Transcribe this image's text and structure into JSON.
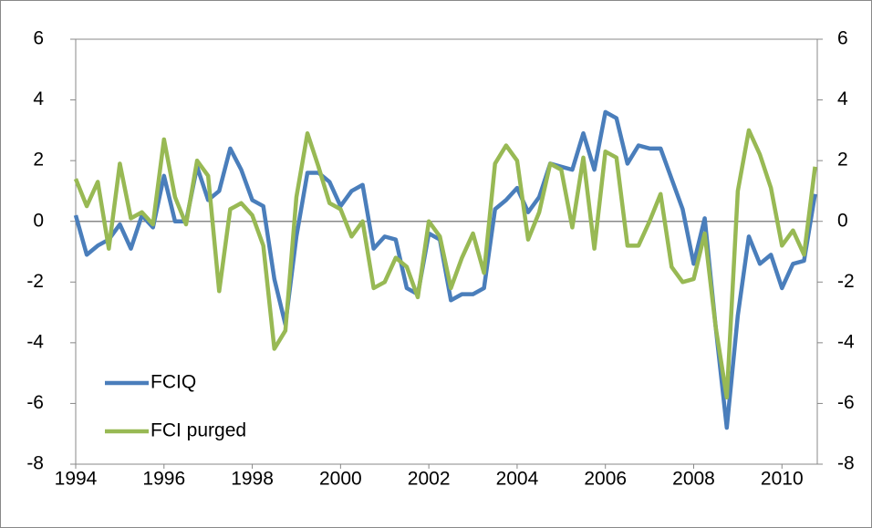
{
  "chart_data": {
    "type": "line",
    "x": [
      1994,
      1994.25,
      1994.5,
      1994.75,
      1995,
      1995.25,
      1995.5,
      1995.75,
      1996,
      1996.25,
      1996.5,
      1996.75,
      1997,
      1997.25,
      1997.5,
      1997.75,
      1998,
      1998.25,
      1998.5,
      1998.75,
      1999,
      1999.25,
      1999.5,
      1999.75,
      2000,
      2000.25,
      2000.5,
      2000.75,
      2001,
      2001.25,
      2001.5,
      2001.75,
      2002,
      2002.25,
      2002.5,
      2002.75,
      2003,
      2003.25,
      2003.5,
      2003.75,
      2004,
      2004.25,
      2004.5,
      2004.75,
      2005,
      2005.25,
      2005.5,
      2005.75,
      2006,
      2006.25,
      2006.5,
      2006.75,
      2007,
      2007.25,
      2007.5,
      2007.75,
      2008,
      2008.25,
      2008.5,
      2008.75,
      2009,
      2009.25,
      2009.5,
      2009.75,
      2010,
      2010.25,
      2010.5,
      2010.75
    ],
    "series": [
      {
        "name": "FCIQ",
        "color": "#4a7ebb",
        "values": [
          0.2,
          -1.1,
          -0.8,
          -0.6,
          -0.1,
          -0.9,
          0.2,
          -0.2,
          1.5,
          0.0,
          0.0,
          1.8,
          0.7,
          1.0,
          2.4,
          1.7,
          0.7,
          0.5,
          -1.9,
          -3.4,
          -0.5,
          1.6,
          1.6,
          1.3,
          0.5,
          1.0,
          1.2,
          -0.9,
          -0.5,
          -0.6,
          -2.2,
          -2.4,
          -0.4,
          -0.6,
          -2.6,
          -2.4,
          -2.4,
          -2.2,
          0.4,
          0.7,
          1.1,
          0.3,
          0.8,
          1.9,
          1.8,
          1.7,
          2.9,
          1.7,
          3.6,
          3.4,
          1.9,
          2.5,
          2.4,
          2.4,
          1.4,
          0.4,
          -1.4,
          0.1,
          -3.5,
          -6.8,
          -3.1,
          -0.5,
          -1.4,
          -1.1,
          -2.2,
          -1.4,
          -1.3,
          0.9
        ]
      },
      {
        "name": "FCI purged",
        "color": "#98b954",
        "values": [
          1.4,
          0.5,
          1.3,
          -0.9,
          1.9,
          0.1,
          0.3,
          -0.1,
          2.7,
          0.8,
          -0.1,
          2.0,
          1.5,
          -2.3,
          0.4,
          0.6,
          0.2,
          -0.8,
          -4.2,
          -3.6,
          0.8,
          2.9,
          1.8,
          0.6,
          0.4,
          -0.5,
          0.0,
          -2.2,
          -2.0,
          -1.2,
          -1.5,
          -2.5,
          0.0,
          -0.5,
          -2.2,
          -1.2,
          -0.4,
          -1.7,
          1.9,
          2.5,
          2.0,
          -0.6,
          0.3,
          1.9,
          1.7,
          -0.2,
          2.1,
          -0.9,
          2.3,
          2.1,
          -0.8,
          -0.8,
          0.0,
          0.9,
          -1.5,
          -2.0,
          -1.9,
          -0.4,
          -3.5,
          -5.8,
          1.0,
          3.0,
          2.2,
          1.1,
          -0.8,
          -0.3,
          -1.1,
          1.8
        ]
      }
    ],
    "xlim": [
      1994,
      2010.8
    ],
    "xticks": [
      1994,
      1996,
      1998,
      2000,
      2002,
      2004,
      2006,
      2008,
      2010
    ],
    "ylim": [
      -8,
      6
    ],
    "yticks": [
      -8,
      -6,
      -4,
      -2,
      0,
      2,
      4,
      6
    ],
    "y2lim": [
      -8,
      6
    ],
    "y2ticks": [
      -8,
      -6,
      -4,
      -2,
      0,
      2,
      4,
      6
    ],
    "legend": "lower left"
  }
}
